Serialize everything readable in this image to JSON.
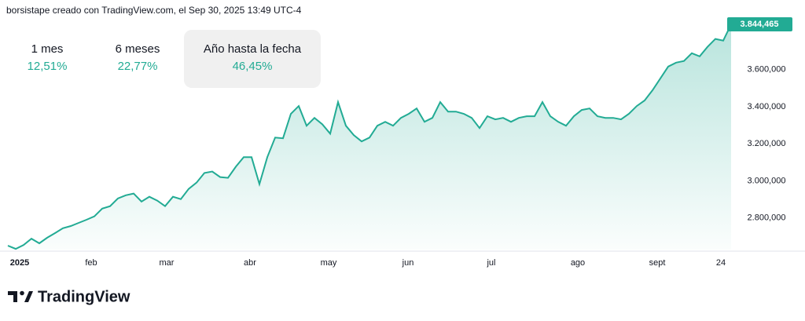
{
  "header": "borsistape creado con TradingView.com, el Sep 30, 2025 13:49 UTC-4",
  "stats": [
    {
      "period": "1 mes",
      "change": "12,51%"
    },
    {
      "period": "6 meses",
      "change": "22,77%"
    },
    {
      "period": "Año hasta la fecha",
      "change": "46,45%"
    }
  ],
  "footer": "TradingView",
  "chart_data": {
    "type": "area",
    "color": "#22ab94",
    "values": [
      2651000,
      2634000,
      2655000,
      2689000,
      2664000,
      2694000,
      2719000,
      2745000,
      2757000,
      2774000,
      2791000,
      2809000,
      2851000,
      2864000,
      2906000,
      2923000,
      2932000,
      2889000,
      2915000,
      2894000,
      2864000,
      2915000,
      2902000,
      2957000,
      2991000,
      3043000,
      3051000,
      3021000,
      3017000,
      3077000,
      3128000,
      3128000,
      2983000,
      3128000,
      3234000,
      3230000,
      3362000,
      3404000,
      3298000,
      3340000,
      3306000,
      3255000,
      3425000,
      3298000,
      3247000,
      3213000,
      3234000,
      3298000,
      3319000,
      3298000,
      3340000,
      3362000,
      3391000,
      3319000,
      3340000,
      3425000,
      3374000,
      3374000,
      3362000,
      3340000,
      3285000,
      3349000,
      3332000,
      3340000,
      3319000,
      3340000,
      3349000,
      3349000,
      3425000,
      3349000,
      3319000,
      3298000,
      3349000,
      3383000,
      3391000,
      3349000,
      3340000,
      3340000,
      3332000,
      3362000,
      3404000,
      3434000,
      3489000,
      3553000,
      3617000,
      3638000,
      3647000,
      3689000,
      3672000,
      3723000,
      3766000,
      3757000,
      3844465
    ],
    "value_labels": [
      null,
      null,
      null,
      null,
      null,
      null,
      null,
      null,
      null,
      null,
      null,
      null,
      null,
      null,
      null,
      null,
      null,
      null,
      null,
      null,
      null,
      null,
      null,
      null,
      null,
      null,
      null,
      null,
      null,
      null,
      null,
      null,
      null,
      null,
      null,
      null,
      null,
      null,
      null,
      null,
      null,
      null,
      null,
      null,
      null,
      null,
      null,
      null,
      null,
      null,
      null,
      null,
      null,
      null,
      null,
      null,
      null,
      null,
      null,
      null,
      null,
      null,
      null,
      null,
      null,
      null,
      null,
      null,
      null,
      null,
      null,
      null,
      null,
      null,
      null,
      null,
      null,
      null,
      null,
      null,
      null,
      null,
      null,
      null,
      null,
      null,
      null,
      null,
      null,
      null,
      null,
      null,
      "3.844,465"
    ],
    "xlim": [
      0,
      92
    ],
    "xticks": [
      {
        "value": 1.5,
        "label": "2025"
      },
      {
        "value": 10.6,
        "label": "feb"
      },
      {
        "value": 20.2,
        "label": "mar"
      },
      {
        "value": 30.8,
        "label": "abr"
      },
      {
        "value": 40.8,
        "label": "may"
      },
      {
        "value": 50.9,
        "label": "jun"
      },
      {
        "value": 61.5,
        "label": "jul"
      },
      {
        "value": 72.5,
        "label": "ago"
      },
      {
        "value": 82.6,
        "label": "sept"
      },
      {
        "value": 90.7,
        "label": "24"
      }
    ],
    "ylim": [
      2630000,
      3870000
    ],
    "yticks": [
      {
        "value": 2800000,
        "label": "2.800,000"
      },
      {
        "value": 3000000,
        "label": "3.000,000"
      },
      {
        "value": 3200000,
        "label": "3.200,000"
      },
      {
        "value": 3400000,
        "label": "3.400,000"
      },
      {
        "value": 3600000,
        "label": "3.600,000"
      }
    ],
    "grid": false
  }
}
